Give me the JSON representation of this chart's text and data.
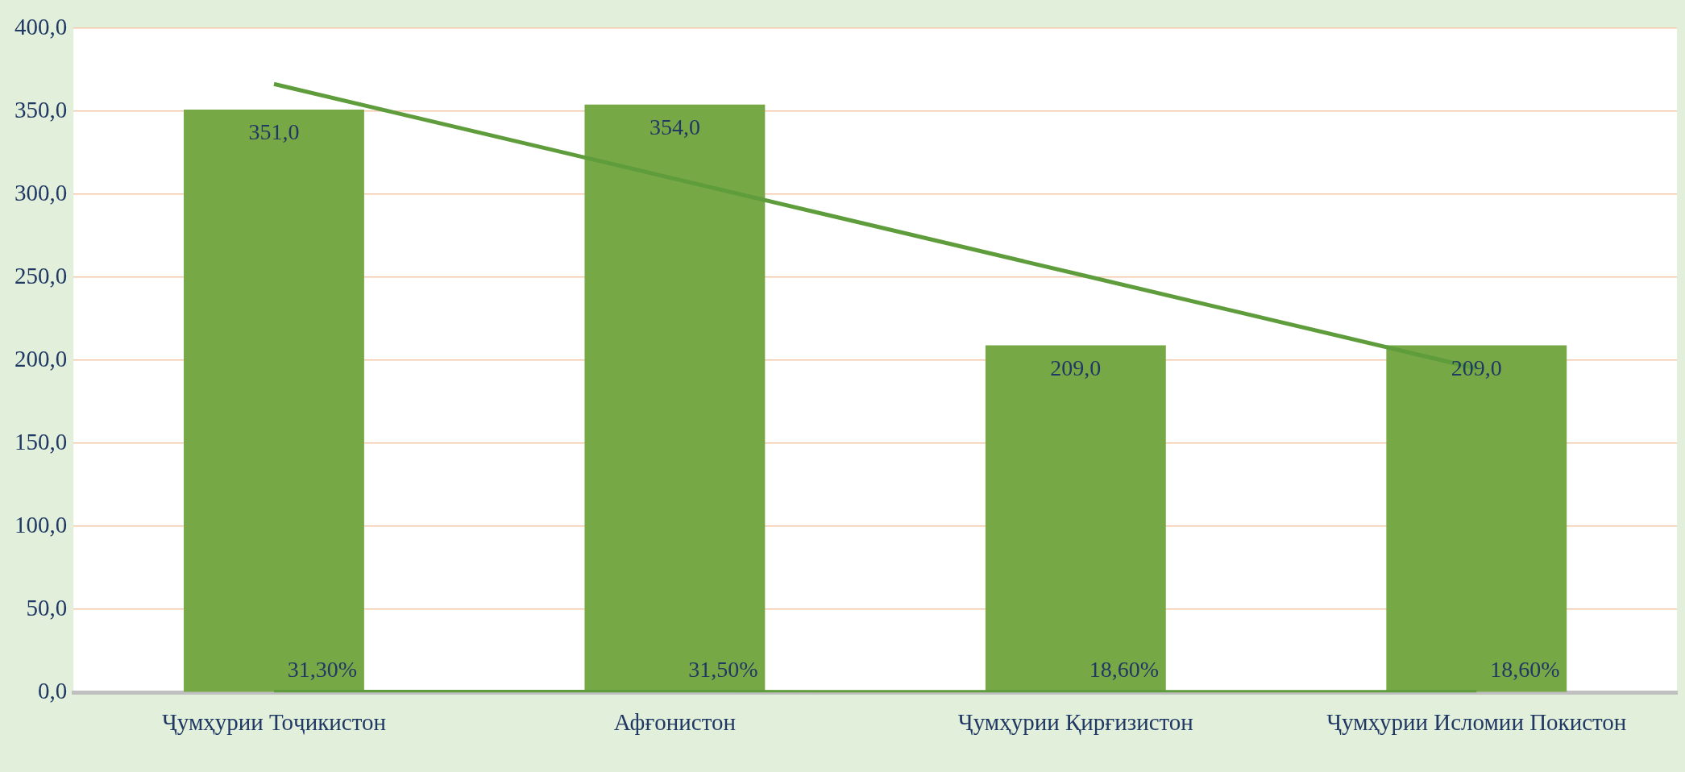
{
  "chart_data": {
    "type": "bar",
    "categories": [
      "Ҷумҳурии Тоҷикистон",
      "Афғонистон",
      "Ҷумҳурии Қирғизистон",
      "Ҷумҳурии Исломии Покистон"
    ],
    "series": [
      {
        "color": "#77a846",
        "values": [
          351,
          354,
          209,
          209
        ],
        "value_labels": [
          "351,0",
          "354,0",
          "209,0",
          "209,0"
        ]
      },
      {
        "type": "line",
        "color": "#5e9c3c",
        "values": [
          0.313,
          0.315,
          0.186,
          0.186
        ],
        "value_labels": [
          "31,30%",
          "31,50%",
          "18,60%",
          "18,60%"
        ]
      },
      {
        "type": "line",
        "color": "#5e9c3c",
        "values": [
          366.4,
          309.3,
          252.2,
          195.1
        ]
      }
    ],
    "ylim": [
      0,
      400
    ],
    "yticks": [
      {
        "value": 0,
        "label": "0,0"
      },
      {
        "value": 50,
        "label": "50,0"
      },
      {
        "value": 100,
        "label": "100,0"
      },
      {
        "value": 150,
        "label": "150,0"
      },
      {
        "value": 200,
        "label": "200,0"
      },
      {
        "value": 250,
        "label": "250,0"
      },
      {
        "value": 300,
        "label": "300,0"
      },
      {
        "value": 350,
        "label": "350,0"
      },
      {
        "value": 400,
        "label": "400,0"
      }
    ],
    "grid": "y",
    "legend": false,
    "marker": "none"
  }
}
